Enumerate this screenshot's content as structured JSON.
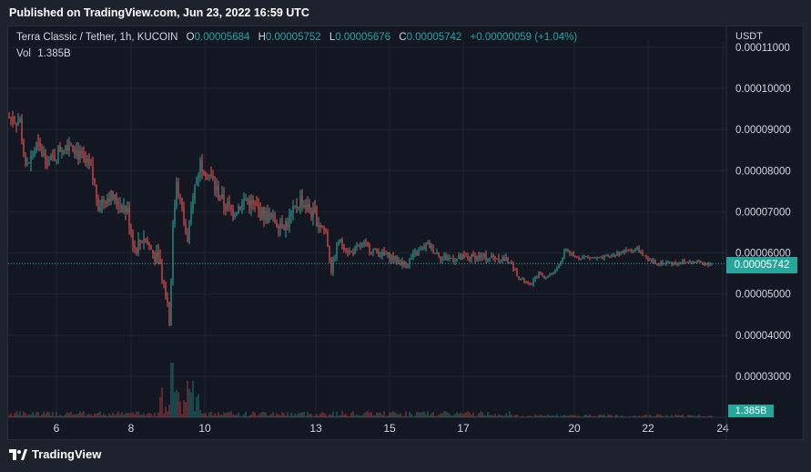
{
  "header": {
    "published": "Published on TradingView.com, Jun 23, 2022 16:59 UTC"
  },
  "legend": {
    "symbol": "Terra Classic / Tether, 1h, KUCOIN",
    "o_label": "O",
    "o_value": "0.00005684",
    "h_label": "H",
    "h_value": "0.00005752",
    "l_label": "L",
    "l_value": "0.00005676",
    "c_label": "C",
    "c_value": "0.00005742",
    "change": "+0.00000059 (+1.04%)",
    "vol_label": "Vol",
    "vol_value": "1.385B"
  },
  "price_axis": {
    "currency": "USDT",
    "ticks": [
      "0.00011000",
      "0.00010000",
      "0.00009000",
      "0.00008000",
      "0.00007000",
      "0.00006000",
      "0.00005000",
      "0.00004000",
      "0.00003000"
    ],
    "last_price": "0.00005742",
    "volume_tag": "1.385B"
  },
  "time_axis": {
    "ticks": [
      "6",
      "8",
      "10",
      "13",
      "15",
      "17",
      "20",
      "22",
      "24"
    ]
  },
  "footer": {
    "brand": "TradingView"
  },
  "colors": {
    "up": "#26a69a",
    "down": "#ef5350",
    "background": "#131722",
    "grid": "#1f2430"
  },
  "chart_data": {
    "type": "candlestick",
    "title": "Terra Classic / Tether, 1h, KUCOIN",
    "ylim": [
      2e-05,
      0.000112
    ],
    "x": [
      "5",
      "6",
      "7",
      "8",
      "9",
      "9",
      "10",
      "11",
      "12",
      "13",
      "14",
      "15",
      "16",
      "17",
      "18",
      "19",
      "20",
      "21",
      "22",
      "23"
    ],
    "close": [
      9e-05,
      8.3e-05,
      7.8e-05,
      6.9e-05,
      6e-05,
      7.8e-05,
      7.6e-05,
      7e-05,
      7.1e-05,
      5.9e-05,
      5.8e-05,
      6e-05,
      5.9e-05,
      5.85e-05,
      5.4e-05,
      5.7e-05,
      6e-05,
      6.1e-05,
      5.75e-05,
      5.74e-05
    ],
    "volume_last": "1.385B",
    "grid": true
  }
}
